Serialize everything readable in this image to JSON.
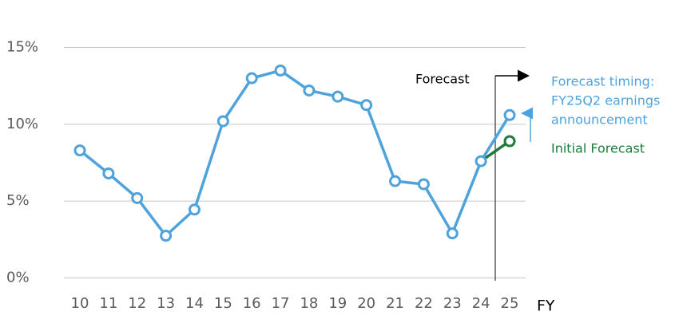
{
  "chart_data": {
    "type": "line",
    "categories": [
      "10",
      "11",
      "12",
      "13",
      "14",
      "15",
      "16",
      "17",
      "18",
      "19",
      "20",
      "21",
      "22",
      "23",
      "24",
      "25"
    ],
    "series": [
      {
        "color": "#4fa3dc",
        "values": [
          8.3,
          6.8,
          5.2,
          2.75,
          4.45,
          10.2,
          13.0,
          13.5,
          12.2,
          11.8,
          11.25,
          6.3,
          6.1,
          2.9,
          7.6,
          10.6
        ]
      },
      {
        "name": "Initial Forecast",
        "color": "#1e7b3e",
        "values": [
          null,
          null,
          null,
          null,
          null,
          null,
          null,
          null,
          null,
          null,
          null,
          null,
          null,
          null,
          7.6,
          8.9
        ]
      }
    ],
    "ylim": [
      0,
      15
    ],
    "yticks": [
      {
        "value": 0,
        "label": "0%"
      },
      {
        "value": 5,
        "label": "5%"
      },
      {
        "value": 10,
        "label": "10%"
      },
      {
        "value": 15,
        "label": "15%"
      }
    ],
    "grid": true,
    "x_label": "FY",
    "forecast_label": "Forecast",
    "annotation": {
      "lines": [
        "Forecast timing:",
        "FY25Q2 earnings",
        "announcement"
      ],
      "color": "#4fa3dc"
    }
  }
}
